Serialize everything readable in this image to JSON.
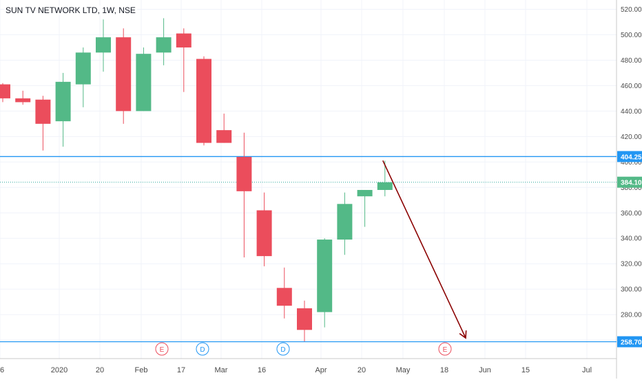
{
  "title": "SUN TV NETWORK LTD, 1W, NSE",
  "colors": {
    "up": "#53b987",
    "down": "#eb4d5c",
    "hline": "#2196f3",
    "dotted": "#26a69a",
    "arrow": "#8b0000",
    "grid": "#f0f3fa",
    "axis_text": "#4a4a4a",
    "earnings": "#eb4d5c",
    "dividend": "#2196f3"
  },
  "chart_data": {
    "type": "candlestick",
    "title": "SUN TV NETWORK LTD, 1W, NSE",
    "ylim": [
      250,
      525
    ],
    "y_ticks": [
      520,
      500,
      480,
      460,
      440,
      420,
      400,
      380,
      360,
      340,
      320,
      300,
      280,
      260
    ],
    "y_tick_labels": [
      "520.00",
      "500.00",
      "480.00",
      "460.00",
      "440.00",
      "420.00",
      "400.00",
      "380.00",
      "360.00",
      "340.00",
      "320.00",
      "300.00",
      "280.00",
      "260.00"
    ],
    "x_labels": [
      "6",
      "2020",
      "20",
      "Feb",
      "17",
      "Mar",
      "16",
      "Apr",
      "20",
      "May",
      "18",
      "Jun",
      "15",
      "Jul"
    ],
    "candles": [
      {
        "date": "2019-12-02",
        "open": 461,
        "high": 462,
        "low": 447,
        "close": 450
      },
      {
        "date": "2019-12-09",
        "open": 450,
        "high": 456,
        "low": 445,
        "close": 447
      },
      {
        "date": "2019-12-16",
        "open": 449,
        "high": 452,
        "low": 409,
        "close": 430
      },
      {
        "date": "2019-12-23",
        "open": 432,
        "high": 470,
        "low": 412,
        "close": 463
      },
      {
        "date": "2019-12-30",
        "open": 461,
        "high": 490,
        "low": 443,
        "close": 486
      },
      {
        "date": "2020-01-06",
        "open": 486,
        "high": 512,
        "low": 471,
        "close": 498
      },
      {
        "date": "2020-01-13",
        "open": 498,
        "high": 505,
        "low": 430,
        "close": 440
      },
      {
        "date": "2020-01-20",
        "open": 440,
        "high": 490,
        "low": 440,
        "close": 485
      },
      {
        "date": "2020-01-27",
        "open": 486,
        "high": 513,
        "low": 476,
        "close": 498
      },
      {
        "date": "2020-02-03",
        "open": 501,
        "high": 505,
        "low": 455,
        "close": 490
      },
      {
        "date": "2020-02-10",
        "open": 481,
        "high": 483,
        "low": 413,
        "close": 415
      },
      {
        "date": "2020-02-17",
        "open": 425,
        "high": 438,
        "low": 415,
        "close": 415
      },
      {
        "date": "2020-02-24",
        "open": 404,
        "high": 423,
        "low": 325,
        "close": 377
      },
      {
        "date": "2020-03-02",
        "open": 362,
        "high": 376,
        "low": 318,
        "close": 326
      },
      {
        "date": "2020-03-09",
        "open": 301,
        "high": 317,
        "low": 277,
        "close": 287
      },
      {
        "date": "2020-03-16",
        "open": 285,
        "high": 291,
        "low": 259,
        "close": 268
      },
      {
        "date": "2020-03-23",
        "open": 282,
        "high": 340,
        "low": 270,
        "close": 339
      },
      {
        "date": "2020-03-30",
        "open": 339,
        "high": 376,
        "low": 327,
        "close": 367
      },
      {
        "date": "2020-04-06",
        "open": 373,
        "high": 378,
        "low": 349,
        "close": 378
      },
      {
        "date": "2020-04-13",
        "open": 378,
        "high": 401,
        "low": 373,
        "close": 384
      }
    ],
    "horizontal_lines": [
      {
        "price": 404.25,
        "label": "404.25",
        "style": "solid"
      },
      {
        "price": 258.7,
        "label": "258.70",
        "style": "solid"
      },
      {
        "price": 384.1,
        "label": "384.10",
        "style": "dotted"
      }
    ],
    "arrow": {
      "from": {
        "date": "2020-04-13",
        "price": 400
      },
      "to": {
        "date": "2020-05-22",
        "price": 260
      }
    },
    "events": [
      {
        "letter": "E",
        "type": "earnings"
      },
      {
        "letter": "D",
        "type": "dividend"
      },
      {
        "letter": "D",
        "type": "dividend"
      },
      {
        "letter": "E",
        "type": "earnings"
      }
    ]
  }
}
